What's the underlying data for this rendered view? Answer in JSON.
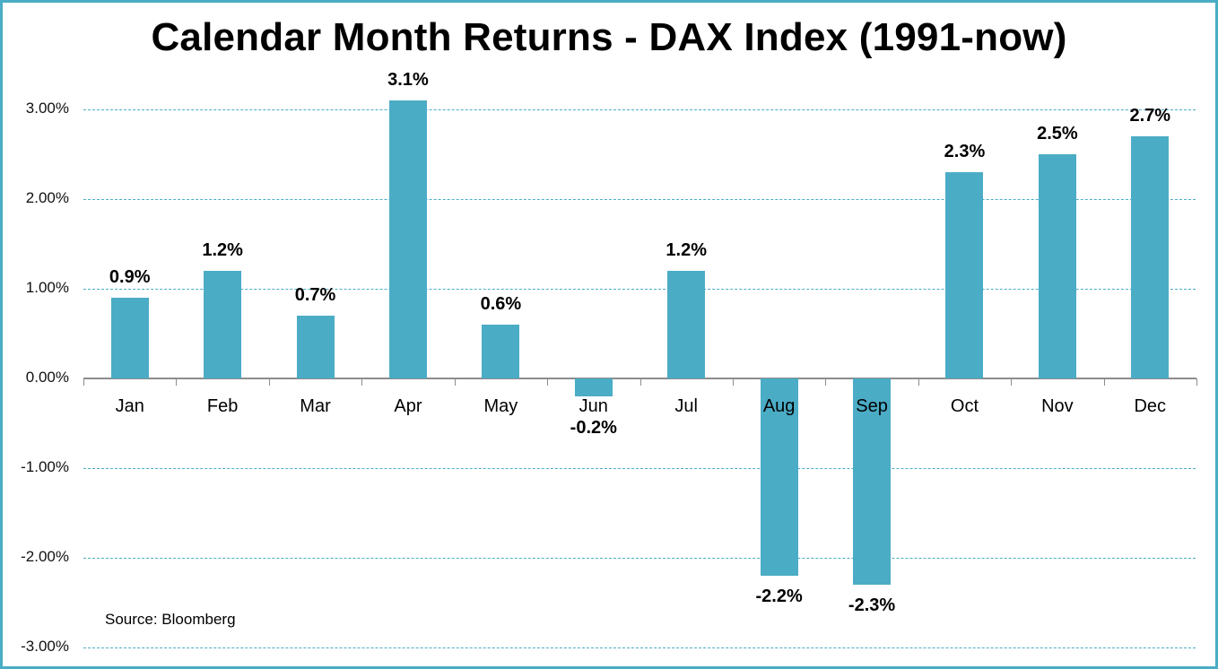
{
  "chart_data": {
    "type": "bar",
    "title": "Calendar Month Returns - DAX Index (1991-now)",
    "xlabel": "",
    "ylabel": "",
    "categories": [
      "Jan",
      "Feb",
      "Mar",
      "Apr",
      "May",
      "Jun",
      "Jul",
      "Aug",
      "Sep",
      "Oct",
      "Nov",
      "Dec"
    ],
    "values": [
      0.9,
      1.2,
      0.7,
      3.1,
      0.6,
      -0.2,
      1.2,
      -2.2,
      -2.3,
      2.3,
      2.5,
      2.7
    ],
    "value_labels": [
      "0.9%",
      "1.2%",
      "0.7%",
      "3.1%",
      "0.6%",
      "-0.2%",
      "1.2%",
      "-2.2%",
      "-2.3%",
      "2.3%",
      "2.5%",
      "2.7%"
    ],
    "ylim": [
      -3,
      3
    ],
    "yticks": [
      3,
      2,
      1,
      0,
      -1,
      -2,
      -3
    ],
    "ytick_labels": [
      "3.00%",
      "2.00%",
      "1.00%",
      "0.00%",
      "-1.00%",
      "-2.00%",
      "-3.00%"
    ],
    "grid": true,
    "legend": null,
    "bar_color": "#4BACC6",
    "annotations": [
      "Source: Bloomberg"
    ]
  },
  "title": "Calendar Month Returns - DAX Index (1991-now)",
  "source": "Source: Bloomberg",
  "colors": {
    "bar": "#4BACC6",
    "border": "#4BACC6",
    "grid": "#4BACC6",
    "axis": "#8c8c8c"
  }
}
